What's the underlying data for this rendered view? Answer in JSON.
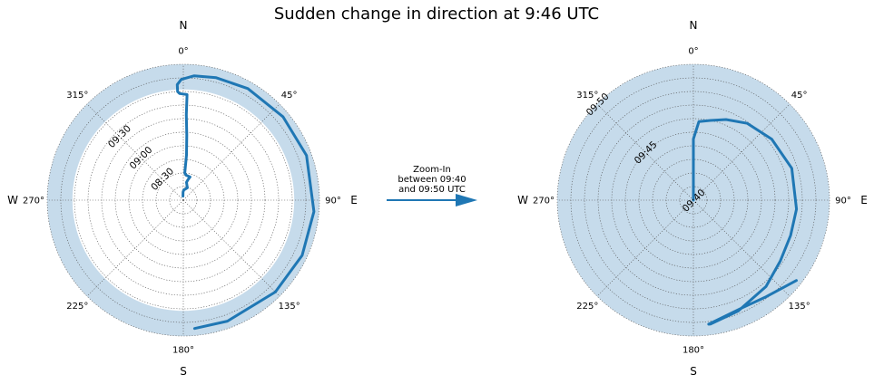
{
  "chart_data": {
    "type": "polar-line",
    "title": "Sudden change in direction at 9:46 UTC",
    "annotation": {
      "lines": [
        "Zoom-In",
        "between 09:40",
        "and 09:50 UTC"
      ]
    },
    "theta_ticks": [
      "0°",
      "45°",
      "90°",
      "135°",
      "180°",
      "225°",
      "270°",
      "315°"
    ],
    "compass": {
      "N": "N",
      "E": "E",
      "S": "S",
      "W": "W"
    },
    "colors": {
      "line": "#1f77b4",
      "shade": "#c6dbeb",
      "grid": "#555555"
    },
    "panels": [
      {
        "name": "overview",
        "r_range": [
          "08:00",
          "10:15"
        ],
        "r_tick_labels": [
          "08:30",
          "09:00",
          "09:30"
        ],
        "r_tick_label_angle_deg": 315,
        "shaded_band": {
          "from": "09:50",
          "to": "10:15"
        },
        "grid_rings": 10,
        "track": [
          {
            "t": "08:04",
            "dir_deg": 355
          },
          {
            "t": "08:08",
            "dir_deg": 358
          },
          {
            "t": "08:10",
            "dir_deg": 2
          },
          {
            "t": "08:13",
            "dir_deg": 18
          },
          {
            "t": "08:15",
            "dir_deg": 14
          },
          {
            "t": "08:18",
            "dir_deg": 10
          },
          {
            "t": "08:21",
            "dir_deg": 13
          },
          {
            "t": "08:24",
            "dir_deg": 16
          },
          {
            "t": "08:25",
            "dir_deg": 6
          },
          {
            "t": "08:27",
            "dir_deg": 3
          },
          {
            "t": "08:45",
            "dir_deg": 4
          },
          {
            "t": "09:05",
            "dir_deg": 3
          },
          {
            "t": "09:25",
            "dir_deg": 2
          },
          {
            "t": "09:45",
            "dir_deg": 2
          },
          {
            "t": "09:46",
            "dir_deg": 358
          },
          {
            "t": "09:48",
            "dir_deg": 357
          },
          {
            "t": "09:55",
            "dir_deg": 357
          },
          {
            "t": "10:00",
            "dir_deg": 359
          },
          {
            "t": "10:04",
            "dir_deg": 5
          },
          {
            "t": "10:06",
            "dir_deg": 15
          },
          {
            "t": "10:08",
            "dir_deg": 30
          },
          {
            "t": "10:09",
            "dir_deg": 50
          },
          {
            "t": "10:10",
            "dir_deg": 70
          },
          {
            "t": "10:10",
            "dir_deg": 95
          },
          {
            "t": "10:10",
            "dir_deg": 115
          },
          {
            "t": "10:09",
            "dir_deg": 135
          },
          {
            "t": "10:08",
            "dir_deg": 160
          },
          {
            "t": "10:08",
            "dir_deg": 175
          }
        ]
      },
      {
        "name": "zoom",
        "r_range": [
          "09:40",
          "09:50"
        ],
        "r_tick_labels": [
          "09:40",
          "09:45",
          "09:50"
        ],
        "r_tick_label_angle_deg": 315,
        "shaded_band": {
          "from": "09:40",
          "to": "09:50"
        },
        "grid_rings": 10,
        "track": [
          {
            "t": "09:40.0",
            "dir_deg": 0
          },
          {
            "t": "09:44.5",
            "dir_deg": 360
          },
          {
            "t": "09:45.8",
            "dir_deg": 4
          },
          {
            "t": "09:46.0",
            "dir_deg": 12
          },
          {
            "t": "09:46.4",
            "dir_deg": 22
          },
          {
            "t": "09:46.9",
            "dir_deg": 35
          },
          {
            "t": "09:47.3",
            "dir_deg": 52
          },
          {
            "t": "09:47.6",
            "dir_deg": 72
          },
          {
            "t": "09:47.6",
            "dir_deg": 95
          },
          {
            "t": "09:47.6",
            "dir_deg": 110
          },
          {
            "t": "09:47.8",
            "dir_deg": 125
          },
          {
            "t": "09:48.3",
            "dir_deg": 140
          },
          {
            "t": "09:48.8",
            "dir_deg": 158
          },
          {
            "t": "09:49.2",
            "dir_deg": 172
          },
          {
            "t": "09:49.2",
            "dir_deg": 173
          },
          {
            "t": "09:48.7",
            "dir_deg": 156
          },
          {
            "t": "09:48.9",
            "dir_deg": 143
          },
          {
            "t": "09:49.6",
            "dir_deg": 128
          }
        ]
      }
    ]
  }
}
